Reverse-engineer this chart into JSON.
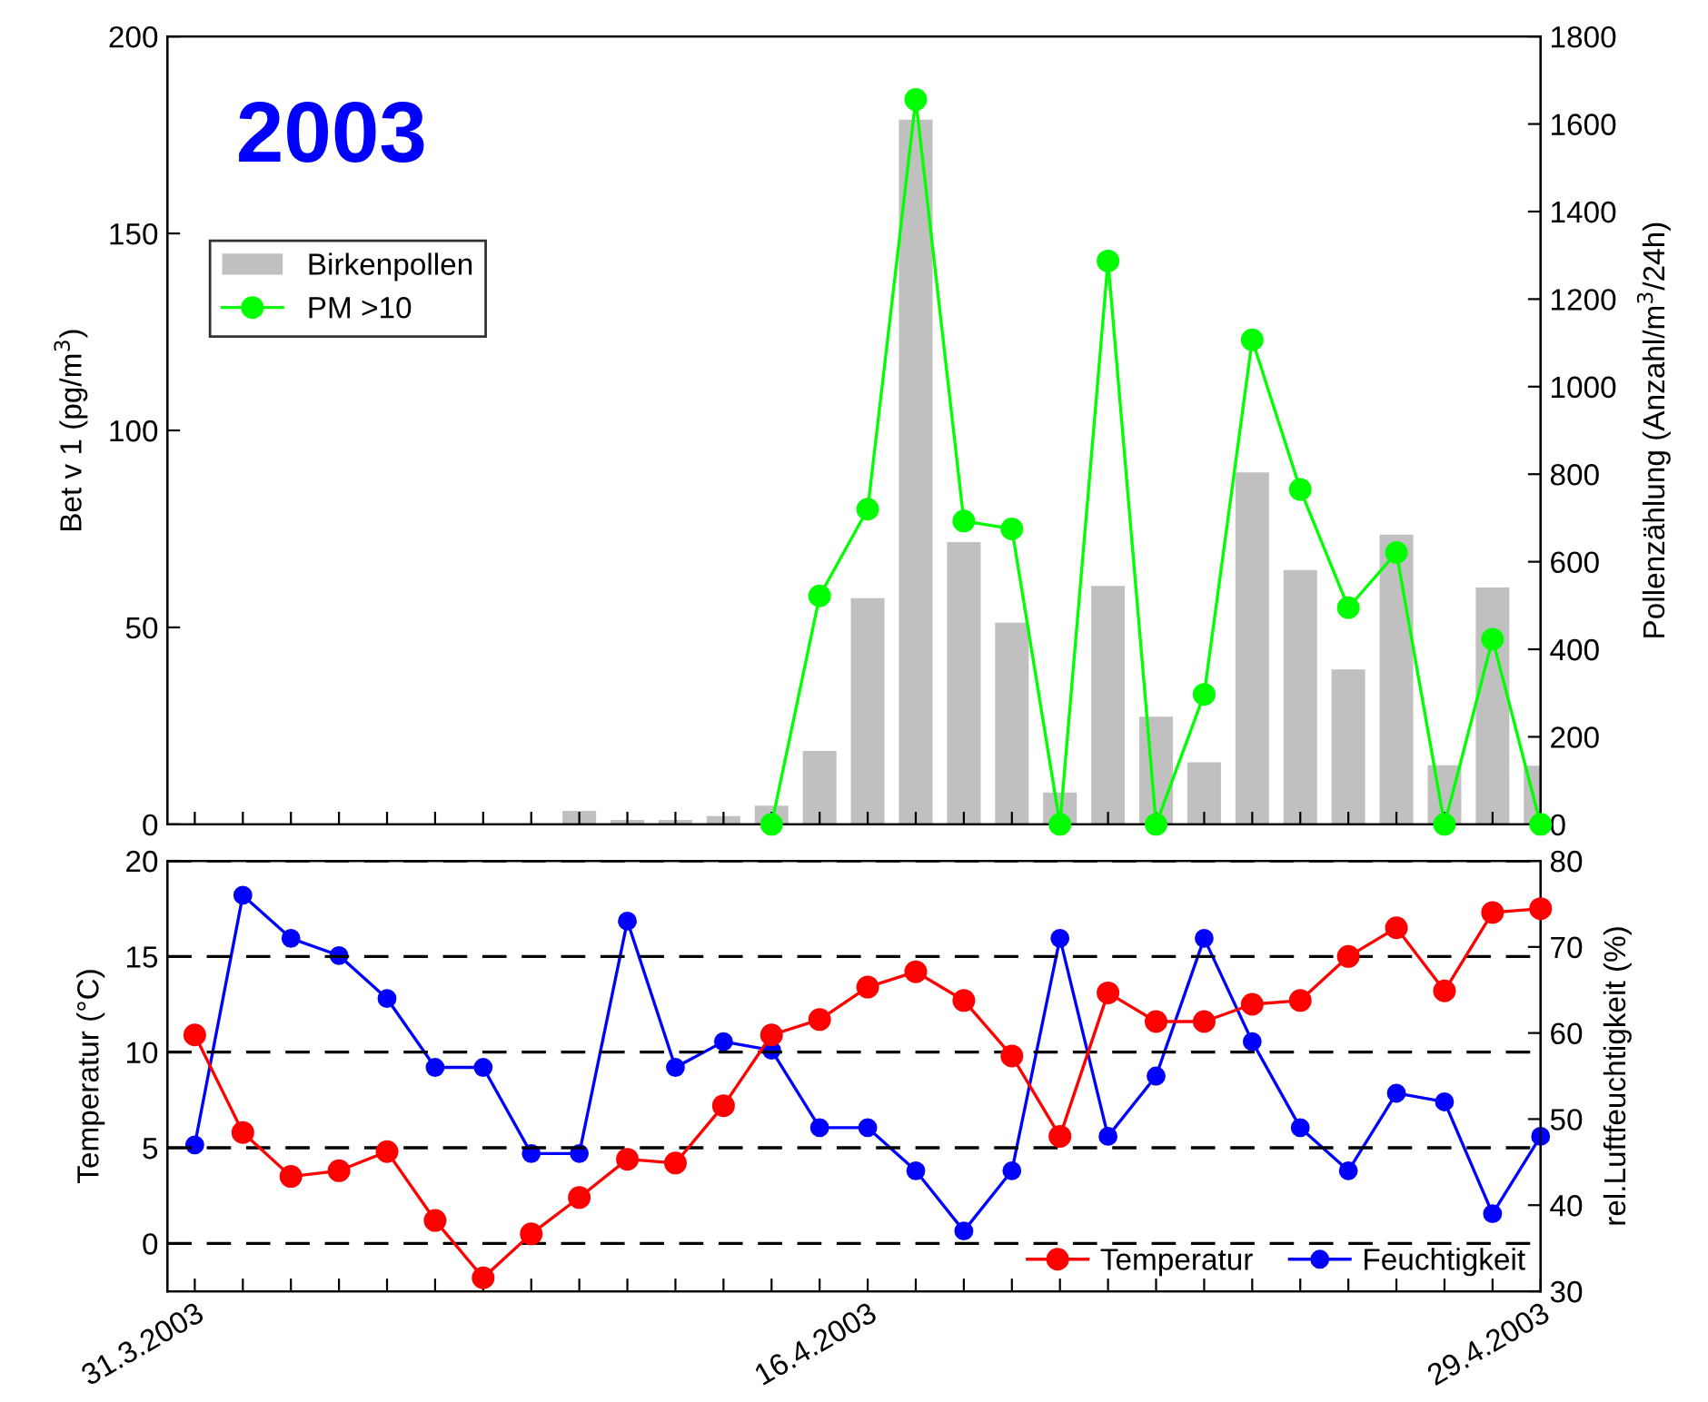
{
  "chart_data": [
    {
      "type": "bar",
      "ylabel": "Bet v 1 (pg/m$^{3}$)",
      "y2label": "Pollenzählung (Anzahl/m$^{3}$/24h)",
      "annotations": [
        "2003"
      ],
      "categories": [
        "31.3.2003",
        null,
        null,
        null,
        null,
        null,
        null,
        null,
        null,
        null,
        null,
        null,
        null,
        null,
        "16.4.2003",
        null,
        null,
        null,
        null,
        null,
        null,
        null,
        null,
        null,
        null,
        null,
        null,
        null,
        "29.4.2003"
      ],
      "ylim": [
        0,
        200
      ],
      "yticks": [
        0,
        50,
        100,
        150,
        200
      ],
      "y2lim": [
        0,
        1800
      ],
      "y2ticks": [
        0,
        200,
        400,
        600,
        800,
        1000,
        1200,
        1400,
        1600,
        1800
      ],
      "tick_labels": "y",
      "legend": "top left",
      "grid": false,
      "series": [
        {
          "name": "Birkenpollen",
          "type": "bar",
          "axis": "y2",
          "color": "#c0c0c0",
          "values": [
            null,
            null,
            null,
            null,
            null,
            null,
            null,
            null,
            31,
            10,
            10,
            19,
            43,
            168,
            517,
            1610,
            645,
            461,
            73,
            545,
            246,
            142,
            804,
            581,
            354,
            662,
            135,
            541,
            134
          ]
        },
        {
          "name": "PM >10",
          "type": "line",
          "axis": "y",
          "color": "#00ff00",
          "marker": "circle",
          "values": [
            null,
            null,
            null,
            null,
            null,
            null,
            null,
            null,
            null,
            null,
            null,
            null,
            0,
            58,
            80,
            184,
            77,
            75,
            0,
            143,
            0,
            33,
            123,
            85,
            55,
            69,
            0,
            47,
            0
          ]
        }
      ]
    },
    {
      "type": "line",
      "ylabel": "Temperatur (°C)",
      "y2label": "rel.Luftfeuchtigkeit (%)",
      "categories": [
        "31.3.2003",
        null,
        null,
        null,
        null,
        null,
        null,
        null,
        null,
        null,
        null,
        null,
        null,
        null,
        "16.4.2003",
        null,
        null,
        null,
        null,
        null,
        null,
        null,
        null,
        null,
        null,
        null,
        null,
        null,
        "29.4.2003"
      ],
      "ylim": [
        -2.5,
        20
      ],
      "yticks": [
        0,
        5,
        10,
        15,
        20
      ],
      "y2lim": [
        30,
        80
      ],
      "y2ticks": [
        30,
        40,
        50,
        60,
        70,
        80
      ],
      "grid": "y",
      "legend": "bottom right",
      "marker": "circle",
      "series": [
        {
          "name": "Temperatur",
          "axis": "y",
          "color": "#ff0000",
          "values": [
            10.9,
            5.8,
            3.5,
            3.8,
            4.8,
            1.2,
            -1.8,
            0.5,
            2.4,
            4.4,
            4.2,
            7.2,
            10.9,
            11.7,
            13.4,
            14.2,
            12.7,
            9.8,
            5.6,
            13.1,
            11.6,
            11.6,
            12.5,
            12.7,
            15.0,
            16.5,
            13.2,
            17.3,
            17.5
          ]
        },
        {
          "name": "Feuchtigkeit",
          "axis": "y2",
          "color": "#0000ff",
          "values": [
            47,
            76,
            71,
            69,
            64,
            56,
            56,
            46,
            46,
            73,
            56,
            59,
            58,
            49,
            49,
            44,
            37,
            44,
            71,
            48,
            55,
            71,
            59,
            49,
            44,
            53,
            52,
            39,
            48
          ]
        }
      ]
    }
  ]
}
